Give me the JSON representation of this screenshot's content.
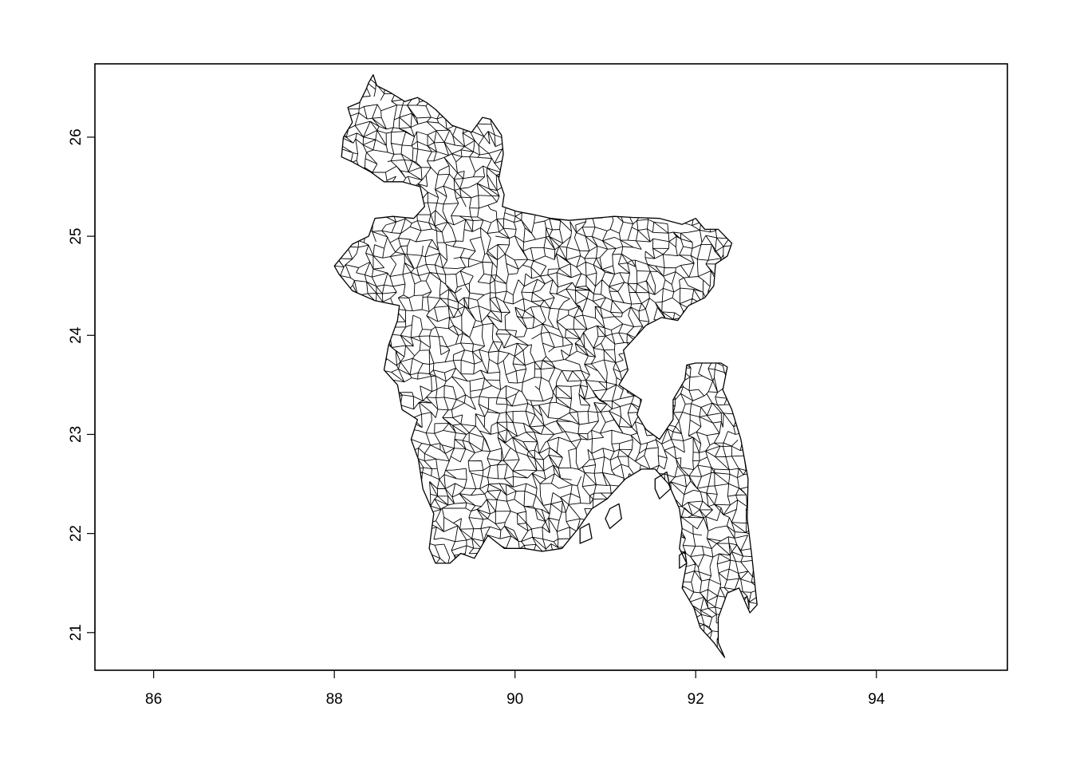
{
  "chart_data": {
    "type": "map",
    "title": "",
    "xlabel": "",
    "ylabel": "",
    "xlim": [
      85.35,
      95.45
    ],
    "ylim": [
      20.62,
      26.74
    ],
    "x_ticks": [
      86,
      88,
      90,
      92,
      94
    ],
    "y_ticks": [
      21,
      22,
      23,
      24,
      25,
      26
    ],
    "x_tick_labels": [
      "86",
      "88",
      "90",
      "92",
      "94"
    ],
    "y_tick_labels": [
      "21",
      "22",
      "23",
      "24",
      "25",
      "26"
    ],
    "grid": false,
    "legend": "none",
    "line_color": "#000000",
    "background": "#ffffff",
    "region": "Bangladesh administrative boundaries (dense polygon outlines)",
    "outline": [
      [
        88.38,
        26.55
      ],
      [
        88.43,
        26.63
      ],
      [
        88.47,
        26.52
      ],
      [
        88.62,
        26.45
      ],
      [
        88.78,
        26.36
      ],
      [
        88.92,
        26.4
      ],
      [
        89.02,
        26.35
      ],
      [
        89.12,
        26.28
      ],
      [
        89.3,
        26.12
      ],
      [
        89.52,
        26.05
      ],
      [
        89.64,
        26.2
      ],
      [
        89.73,
        26.18
      ],
      [
        89.85,
        26.02
      ],
      [
        89.87,
        25.83
      ],
      [
        89.82,
        25.58
      ],
      [
        89.88,
        25.42
      ],
      [
        89.86,
        25.3
      ],
      [
        90.02,
        25.25
      ],
      [
        90.2,
        25.22
      ],
      [
        90.4,
        25.18
      ],
      [
        90.6,
        25.16
      ],
      [
        90.85,
        25.18
      ],
      [
        91.1,
        25.2
      ],
      [
        91.3,
        25.19
      ],
      [
        91.6,
        25.18
      ],
      [
        91.85,
        25.12
      ],
      [
        92.0,
        25.18
      ],
      [
        92.1,
        25.07
      ],
      [
        92.25,
        25.07
      ],
      [
        92.4,
        24.93
      ],
      [
        92.35,
        24.8
      ],
      [
        92.22,
        24.72
      ],
      [
        92.2,
        24.5
      ],
      [
        92.1,
        24.38
      ],
      [
        91.92,
        24.3
      ],
      [
        91.8,
        24.15
      ],
      [
        91.62,
        24.18
      ],
      [
        91.45,
        24.1
      ],
      [
        91.35,
        24.0
      ],
      [
        91.2,
        23.85
      ],
      [
        91.25,
        23.65
      ],
      [
        91.15,
        23.5
      ],
      [
        91.4,
        23.35
      ],
      [
        91.35,
        23.2
      ],
      [
        91.45,
        23.05
      ],
      [
        91.6,
        22.95
      ],
      [
        91.75,
        23.15
      ],
      [
        91.75,
        23.35
      ],
      [
        91.88,
        23.55
      ],
      [
        91.9,
        23.7
      ],
      [
        92.0,
        23.72
      ],
      [
        92.15,
        23.72
      ],
      [
        92.28,
        23.72
      ],
      [
        92.35,
        23.68
      ],
      [
        92.3,
        23.45
      ],
      [
        92.4,
        23.25
      ],
      [
        92.5,
        22.95
      ],
      [
        92.58,
        22.55
      ],
      [
        92.57,
        22.15
      ],
      [
        92.62,
        21.78
      ],
      [
        92.68,
        21.28
      ],
      [
        92.6,
        21.2
      ],
      [
        92.48,
        21.45
      ],
      [
        92.35,
        21.4
      ],
      [
        92.25,
        21.15
      ],
      [
        92.25,
        20.9
      ],
      [
        92.32,
        20.75
      ],
      [
        92.2,
        20.9
      ],
      [
        92.05,
        21.05
      ],
      [
        91.98,
        21.25
      ],
      [
        91.85,
        21.45
      ],
      [
        91.9,
        21.7
      ],
      [
        91.82,
        21.85
      ],
      [
        91.85,
        22.05
      ],
      [
        91.82,
        22.25
      ],
      [
        91.7,
        22.5
      ],
      [
        91.55,
        22.65
      ],
      [
        91.4,
        22.65
      ],
      [
        91.22,
        22.55
      ],
      [
        91.02,
        22.35
      ],
      [
        90.85,
        22.25
      ],
      [
        90.7,
        22.05
      ],
      [
        90.52,
        21.85
      ],
      [
        90.3,
        21.82
      ],
      [
        90.1,
        21.85
      ],
      [
        89.88,
        21.85
      ],
      [
        89.7,
        21.98
      ],
      [
        89.55,
        21.75
      ],
      [
        89.4,
        21.8
      ],
      [
        89.28,
        21.7
      ],
      [
        89.12,
        21.7
      ],
      [
        89.05,
        21.85
      ],
      [
        89.1,
        22.2
      ],
      [
        88.98,
        22.45
      ],
      [
        88.93,
        22.75
      ],
      [
        88.85,
        22.95
      ],
      [
        88.92,
        23.15
      ],
      [
        88.75,
        23.25
      ],
      [
        88.7,
        23.5
      ],
      [
        88.55,
        23.65
      ],
      [
        88.6,
        23.9
      ],
      [
        88.7,
        24.15
      ],
      [
        88.72,
        24.3
      ],
      [
        88.45,
        24.35
      ],
      [
        88.2,
        24.45
      ],
      [
        88.05,
        24.62
      ],
      [
        88.0,
        24.7
      ],
      [
        88.2,
        24.92
      ],
      [
        88.38,
        25.0
      ],
      [
        88.45,
        25.18
      ],
      [
        88.65,
        25.2
      ],
      [
        88.88,
        25.18
      ],
      [
        89.0,
        25.3
      ],
      [
        88.95,
        25.5
      ],
      [
        88.75,
        25.55
      ],
      [
        88.55,
        25.55
      ],
      [
        88.4,
        25.65
      ],
      [
        88.2,
        25.75
      ],
      [
        88.08,
        25.8
      ],
      [
        88.1,
        26.0
      ],
      [
        88.2,
        26.15
      ],
      [
        88.15,
        26.3
      ],
      [
        88.28,
        26.35
      ],
      [
        88.35,
        26.48
      ],
      [
        88.38,
        26.55
      ]
    ],
    "islands": [
      [
        [
          91.55,
          22.55
        ],
        [
          91.68,
          22.62
        ],
        [
          91.72,
          22.45
        ],
        [
          91.6,
          22.35
        ],
        [
          91.55,
          22.45
        ],
        [
          91.55,
          22.55
        ]
      ],
      [
        [
          91.05,
          22.25
        ],
        [
          91.15,
          22.3
        ],
        [
          91.18,
          22.15
        ],
        [
          91.05,
          22.05
        ],
        [
          91.0,
          22.15
        ],
        [
          91.05,
          22.25
        ]
      ],
      [
        [
          90.72,
          22.05
        ],
        [
          90.82,
          22.1
        ],
        [
          90.85,
          21.95
        ],
        [
          90.72,
          21.9
        ],
        [
          90.72,
          22.05
        ]
      ],
      [
        [
          91.82,
          21.78
        ],
        [
          91.88,
          21.82
        ],
        [
          91.9,
          21.7
        ],
        [
          91.82,
          21.65
        ],
        [
          91.82,
          21.78
        ]
      ]
    ]
  }
}
